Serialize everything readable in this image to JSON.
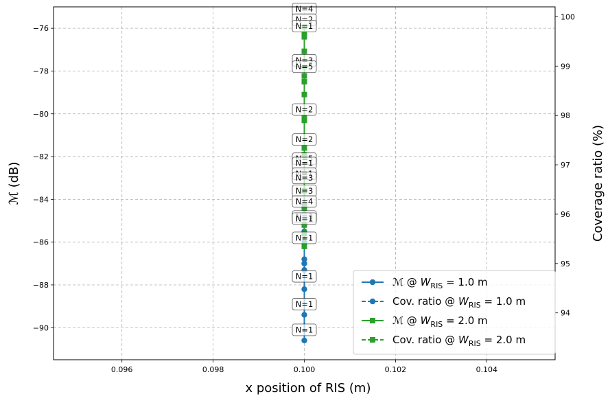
{
  "chart_data": {
    "type": "line",
    "xlabel": "x position of RIS (m)",
    "ylabel_left": "ℳ (dB)",
    "ylabel_right": "Coverage ratio (%)",
    "xlim": [
      0.0945,
      0.1055
    ],
    "ylim_left": [
      -91.5,
      -75
    ],
    "ylim_right": [
      93.05,
      100.2
    ],
    "x_ticks": [
      "0.096",
      "0.098",
      "0.100",
      "0.102",
      "0.104"
    ],
    "x_tick_values": [
      0.096,
      0.098,
      0.1,
      0.102,
      0.104
    ],
    "y_left_ticks": [
      "−76",
      "−78",
      "−80",
      "−82",
      "−84",
      "−86",
      "−88",
      "−90"
    ],
    "y_left_tick_values": [
      -76,
      -78,
      -80,
      -82,
      -84,
      -86,
      -88,
      -90
    ],
    "y_right_ticks": [
      "100",
      "99",
      "98",
      "97",
      "96",
      "95",
      "94"
    ],
    "y_right_tick_values": [
      100,
      99,
      98,
      97,
      96,
      95,
      94
    ],
    "grid": true,
    "legend_position": "lower-right",
    "series": [
      {
        "name": "ℳ @ W_RIS = 1.0 m",
        "legend_main": "ℳ @ ",
        "legend_var": "W",
        "legend_sub": "RIS",
        "legend_tail": " = 1.0 m",
        "axis": "left",
        "color": "#1f77b4",
        "linestyle": "solid",
        "marker": "circle",
        "x": [
          0.1,
          0.1,
          0.1,
          0.1,
          0.1,
          0.1,
          0.1,
          0.1,
          0.1,
          0.1,
          0.1
        ],
        "y": [
          -90.6,
          -89.4,
          -88.2,
          -87.3,
          -87.0,
          -86.8,
          -86.0,
          -85.5,
          -85.2,
          -84.9,
          -84.4
        ]
      },
      {
        "name": "Cov. ratio @ W_RIS = 1.0 m",
        "legend_main": "Cov. ratio @ ",
        "legend_var": "W",
        "legend_sub": "RIS",
        "legend_tail": " = 1.0 m",
        "axis": "right",
        "color": "#1f77b4",
        "linestyle": "dashed",
        "marker": "circle",
        "x": [
          0.1,
          0.1,
          0.1,
          0.1
        ],
        "y": [
          95.6,
          95.8,
          96.0,
          96.2
        ]
      },
      {
        "name": "ℳ @ W_RIS = 2.0 m",
        "legend_main": "ℳ @ ",
        "legend_var": "W",
        "legend_sub": "RIS",
        "legend_tail": " = 2.0 m",
        "axis": "left",
        "color": "#2ca02c",
        "linestyle": "solid",
        "marker": "square",
        "x": [
          0.1,
          0.1,
          0.1,
          0.1,
          0.1,
          0.1,
          0.1,
          0.1,
          0.1,
          0.1,
          0.1,
          0.1
        ],
        "y": [
          -86.2,
          -85.6,
          -85.2,
          -84.4,
          -83.6,
          -82.8,
          -81.6,
          -80.2,
          -79.1,
          -78.5,
          -77.8,
          -76.4
        ]
      },
      {
        "name": "Cov. ratio @ W_RIS = 2.0 m",
        "legend_main": "Cov. ratio @ ",
        "legend_var": "W",
        "legend_sub": "RIS",
        "legend_tail": " = 2.0 m",
        "axis": "right",
        "color": "#2ca02c",
        "linestyle": "dashed",
        "marker": "square",
        "x": [
          0.1,
          0.1,
          0.1,
          0.1,
          0.1,
          0.1
        ],
        "y": [
          99.3,
          99.65,
          99.8,
          98.8,
          97.9,
          97.2
        ]
      }
    ],
    "annotations": [
      {
        "text": "N=4",
        "x": 0.1,
        "y": -75.1
      },
      {
        "text": "N=2",
        "x": 0.1,
        "y": -75.6
      },
      {
        "text": "N=1",
        "x": 0.1,
        "y": -75.9
      },
      {
        "text": "N=3",
        "x": 0.1,
        "y": -77.5
      },
      {
        "text": "N=5",
        "x": 0.1,
        "y": -77.8
      },
      {
        "text": "N=2",
        "x": 0.1,
        "y": -79.8
      },
      {
        "text": "N=2",
        "x": 0.1,
        "y": -81.2
      },
      {
        "text": "N=5",
        "x": 0.1,
        "y": -82.1
      },
      {
        "text": "N=1",
        "x": 0.1,
        "y": -82.3
      },
      {
        "text": "N=1",
        "x": 0.1,
        "y": -82.8
      },
      {
        "text": "N=3",
        "x": 0.1,
        "y": -83.0
      },
      {
        "text": "N=3",
        "x": 0.1,
        "y": -83.6
      },
      {
        "text": "N=4",
        "x": 0.1,
        "y": -84.1
      },
      {
        "text": "N=3",
        "x": 0.1,
        "y": -84.8
      },
      {
        "text": "N=1",
        "x": 0.1,
        "y": -84.9
      },
      {
        "text": "N=1",
        "x": 0.1,
        "y": -85.8
      },
      {
        "text": "N=1",
        "x": 0.1,
        "y": -87.6
      },
      {
        "text": "N=1",
        "x": 0.1,
        "y": -88.9
      },
      {
        "text": "N=1",
        "x": 0.1,
        "y": -90.1
      }
    ]
  }
}
